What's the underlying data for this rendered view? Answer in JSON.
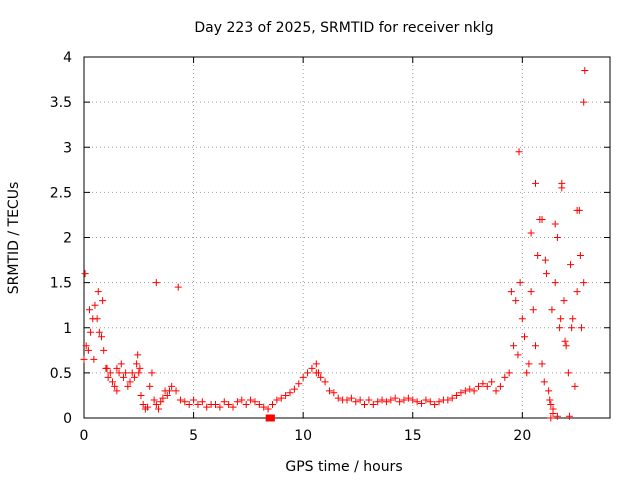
{
  "chart_data": {
    "type": "scatter",
    "title": "Day 223 of 2025, SRMTID for receiver nklg",
    "xlabel": "GPS time / hours",
    "ylabel": "SRMTID / TECUs",
    "xlim": [
      0,
      24
    ],
    "ylim": [
      0,
      4
    ],
    "xticks": [
      0,
      5,
      10,
      15,
      20
    ],
    "xtick_labels": [
      "0",
      "5",
      "10",
      "15",
      "20"
    ],
    "yticks": [
      0,
      0.5,
      1,
      1.5,
      2,
      2.5,
      3,
      3.5,
      4
    ],
    "ytick_labels": [
      "0",
      "0.5",
      "1",
      "1.5",
      "2",
      "2.5",
      "3",
      "3.5",
      "4"
    ],
    "grid": true,
    "marker": "+",
    "series": [
      {
        "name": "SRMTID",
        "color": "#ff0000",
        "x": [
          0.0,
          0.1,
          0.2,
          0.3,
          0.4,
          0.5,
          0.6,
          0.7,
          0.8,
          0.9,
          1.0,
          1.1,
          1.2,
          1.3,
          1.4,
          1.5,
          1.6,
          1.7,
          1.8,
          1.9,
          2.0,
          2.1,
          2.2,
          2.3,
          2.4,
          2.5,
          2.6,
          2.7,
          2.8,
          2.9,
          3.0,
          3.1,
          3.2,
          3.3,
          3.4,
          3.5,
          3.6,
          3.7,
          3.8,
          3.9,
          4.0,
          4.2,
          4.4,
          4.6,
          4.8,
          5.0,
          5.2,
          5.4,
          5.6,
          5.8,
          6.0,
          6.2,
          6.4,
          6.6,
          6.8,
          7.0,
          7.2,
          7.4,
          7.6,
          7.8,
          8.0,
          8.2,
          8.4,
          8.6,
          8.8,
          9.0,
          9.2,
          9.4,
          9.6,
          9.8,
          10.0,
          10.2,
          10.4,
          10.6,
          10.8,
          11.0,
          11.2,
          11.4,
          11.6,
          11.8,
          12.0,
          12.2,
          12.4,
          12.6,
          12.8,
          13.0,
          13.2,
          13.4,
          13.6,
          13.8,
          14.0,
          14.2,
          14.4,
          14.6,
          14.8,
          15.0,
          15.2,
          15.4,
          15.6,
          15.8,
          16.0,
          16.2,
          16.4,
          16.6,
          16.8,
          17.0,
          17.2,
          17.4,
          17.6,
          17.8,
          18.0,
          18.2,
          18.4,
          18.6,
          18.8,
          19.0,
          19.2,
          19.4,
          19.6,
          19.7,
          19.8,
          19.9,
          20.0,
          20.1,
          20.2,
          20.3,
          20.4,
          20.5,
          20.6,
          20.7,
          20.8,
          20.9,
          21.0,
          21.1,
          21.2,
          21.3,
          21.4,
          21.5,
          21.6,
          21.7,
          21.8,
          21.9,
          22.0,
          22.1,
          22.2,
          22.3,
          22.4,
          22.5,
          22.6,
          22.7,
          22.8,
          0.05,
          0.25,
          0.45,
          0.65,
          0.85,
          1.05,
          1.5,
          2.45,
          2.55,
          3.3,
          4.3,
          10.6,
          10.7,
          19.5,
          19.85,
          20.4,
          20.6,
          20.9,
          21.05,
          21.25,
          21.35,
          21.5,
          21.75,
          21.8,
          21.95,
          22.25,
          22.5,
          22.65,
          22.8,
          22.85,
          21.3,
          21.4,
          21.6,
          22.15
        ],
        "y": [
          0.65,
          0.8,
          0.75,
          0.95,
          1.1,
          1.25,
          1.1,
          0.95,
          0.9,
          0.75,
          0.55,
          0.45,
          0.5,
          0.4,
          0.35,
          0.55,
          0.5,
          0.6,
          0.45,
          0.5,
          0.35,
          0.4,
          0.5,
          0.45,
          0.6,
          0.5,
          0.25,
          0.15,
          0.1,
          0.12,
          0.35,
          0.5,
          0.2,
          0.15,
          0.1,
          0.18,
          0.22,
          0.3,
          0.25,
          0.3,
          0.35,
          0.3,
          0.2,
          0.18,
          0.15,
          0.2,
          0.15,
          0.18,
          0.12,
          0.15,
          0.15,
          0.12,
          0.18,
          0.15,
          0.12,
          0.18,
          0.2,
          0.15,
          0.2,
          0.18,
          0.15,
          0.12,
          0.1,
          0.15,
          0.2,
          0.22,
          0.25,
          0.28,
          0.32,
          0.38,
          0.45,
          0.5,
          0.55,
          0.5,
          0.45,
          0.4,
          0.3,
          0.28,
          0.22,
          0.2,
          0.2,
          0.22,
          0.18,
          0.2,
          0.15,
          0.2,
          0.15,
          0.18,
          0.2,
          0.18,
          0.2,
          0.22,
          0.18,
          0.2,
          0.22,
          0.2,
          0.18,
          0.16,
          0.2,
          0.18,
          0.15,
          0.18,
          0.2,
          0.2,
          0.22,
          0.25,
          0.28,
          0.3,
          0.32,
          0.3,
          0.35,
          0.38,
          0.35,
          0.4,
          0.3,
          0.35,
          0.45,
          0.5,
          0.8,
          1.3,
          0.7,
          1.5,
          1.1,
          0.9,
          0.5,
          0.6,
          1.4,
          1.2,
          0.8,
          1.8,
          2.2,
          0.6,
          0.4,
          1.6,
          0.3,
          0.15,
          0.05,
          1.5,
          2.0,
          1.0,
          2.55,
          1.3,
          0.8,
          0.5,
          1.7,
          1.1,
          0.35,
          1.4,
          2.3,
          1.0,
          1.5,
          1.6,
          1.2,
          0.65,
          1.4,
          1.3,
          0.55,
          0.3,
          0.7,
          0.55,
          1.5,
          1.45,
          0.6,
          0.5,
          1.4,
          2.95,
          2.05,
          2.6,
          2.2,
          1.75,
          0.2,
          1.2,
          2.15,
          1.1,
          2.6,
          0.85,
          1.0,
          2.3,
          1.8,
          3.5,
          3.85,
          0.0,
          0.1,
          0.02,
          0.02
        ]
      }
    ],
    "special_markers": [
      {
        "x": 8.45,
        "y": 0.0,
        "shape": "filled-square"
      },
      {
        "x": 8.55,
        "y": 0.0,
        "shape": "filled-square"
      }
    ]
  }
}
